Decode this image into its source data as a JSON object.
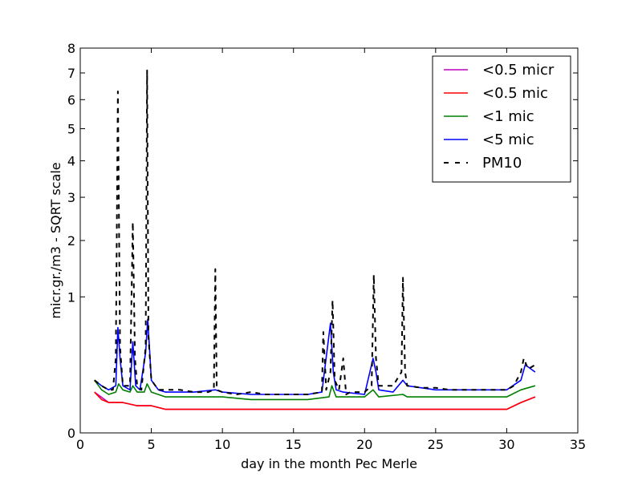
{
  "chart_data": {
    "type": "line",
    "title": "",
    "xlabel": "day in the month Pec Merle",
    "ylabel": "micr.gr./m3 - SQRT scale",
    "xlim": [
      0,
      35
    ],
    "ylim": [
      0,
      8
    ],
    "y_scale": "sqrt",
    "grid": false,
    "legend_position": "top-right",
    "x_ticks": [
      0,
      5,
      10,
      15,
      20,
      25,
      30,
      35
    ],
    "y_ticks": [
      0,
      1,
      2,
      3,
      4,
      5,
      6,
      7,
      8
    ],
    "series": [
      {
        "name": "<0.5 micr",
        "color": "#bf00bf",
        "style": "solid",
        "x": [
          1.0,
          2.0,
          3.0,
          4.0,
          5.0,
          6.0,
          8.0,
          10.0,
          12.0,
          14.0,
          16.0,
          18.0,
          20.0,
          22.0,
          24.0,
          26.0,
          28.0,
          30.0,
          31.0,
          32.0
        ],
        "values": [
          0.09,
          0.05,
          0.05,
          0.04,
          0.04,
          0.03,
          0.03,
          0.03,
          0.03,
          0.03,
          0.03,
          0.03,
          0.03,
          0.03,
          0.03,
          0.03,
          0.03,
          0.03,
          0.05,
          0.07
        ]
      },
      {
        "name": "<0.5 mic",
        "color": "#ff0000",
        "style": "solid",
        "x": [
          1.0,
          1.5,
          2.0,
          3.0,
          4.0,
          5.0,
          6.0,
          7.0,
          8.0,
          10.0,
          12.0,
          14.0,
          16.0,
          18.0,
          20.0,
          22.0,
          24.0,
          26.0,
          28.0,
          30.0,
          31.0,
          32.0
        ],
        "values": [
          0.09,
          0.06,
          0.05,
          0.05,
          0.04,
          0.04,
          0.03,
          0.03,
          0.03,
          0.03,
          0.03,
          0.03,
          0.03,
          0.03,
          0.03,
          0.03,
          0.03,
          0.03,
          0.03,
          0.03,
          0.05,
          0.07
        ]
      },
      {
        "name": "<1 mic",
        "color": "#008000",
        "style": "solid",
        "x": [
          1.0,
          1.5,
          2.0,
          2.5,
          2.7,
          3.0,
          3.5,
          3.7,
          4.0,
          4.5,
          4.7,
          5.0,
          6.0,
          8.0,
          10.0,
          12.0,
          14.0,
          16.0,
          17.5,
          17.7,
          18.0,
          20.0,
          20.6,
          21.0,
          22.7,
          23.0,
          25.0,
          28.0,
          30.0,
          31.0,
          32.0
        ],
        "values": [
          0.15,
          0.1,
          0.08,
          0.09,
          0.13,
          0.1,
          0.09,
          0.12,
          0.09,
          0.09,
          0.13,
          0.09,
          0.07,
          0.07,
          0.07,
          0.06,
          0.06,
          0.06,
          0.07,
          0.12,
          0.07,
          0.07,
          0.1,
          0.07,
          0.08,
          0.07,
          0.07,
          0.07,
          0.07,
          0.1,
          0.12
        ]
      },
      {
        "name": "<5 mic",
        "color": "#0000ff",
        "style": "solid",
        "x": [
          1.0,
          1.5,
          2.0,
          2.5,
          2.65,
          2.8,
          3.0,
          3.5,
          3.7,
          3.9,
          4.2,
          4.6,
          4.75,
          5.0,
          5.5,
          6.0,
          8.0,
          9.5,
          10.0,
          12.0,
          14.0,
          16.0,
          17.0,
          17.6,
          17.8,
          18.0,
          18.5,
          20.0,
          20.6,
          20.8,
          21.0,
          22.0,
          22.7,
          23.0,
          25.0,
          27.0,
          29.0,
          30.0,
          31.0,
          31.3,
          32.0
        ],
        "values": [
          0.15,
          0.12,
          0.1,
          0.12,
          0.6,
          0.3,
          0.12,
          0.1,
          0.45,
          0.12,
          0.1,
          0.35,
          0.7,
          0.15,
          0.1,
          0.09,
          0.09,
          0.1,
          0.09,
          0.08,
          0.08,
          0.08,
          0.09,
          0.65,
          0.2,
          0.1,
          0.09,
          0.08,
          0.3,
          0.2,
          0.1,
          0.09,
          0.15,
          0.12,
          0.1,
          0.1,
          0.1,
          0.1,
          0.15,
          0.25,
          0.2
        ]
      },
      {
        "name": "PM10",
        "color": "#000000",
        "style": "dashed",
        "x": [
          1.0,
          1.5,
          2.0,
          2.3,
          2.5,
          2.65,
          2.8,
          3.0,
          3.5,
          3.7,
          3.85,
          4.0,
          4.3,
          4.6,
          4.7,
          4.8,
          5.0,
          5.5,
          6.0,
          7.0,
          8.0,
          9.0,
          9.4,
          9.5,
          9.6,
          10.0,
          11.0,
          12.0,
          13.0,
          14.0,
          15.0,
          16.0,
          17.0,
          17.1,
          17.3,
          17.6,
          17.75,
          17.9,
          18.2,
          18.5,
          18.7,
          19.0,
          20.0,
          20.5,
          20.65,
          20.8,
          21.0,
          22.0,
          22.6,
          22.7,
          22.85,
          23.0,
          24.0,
          25.0,
          26.0,
          27.0,
          28.0,
          28.8,
          29.0,
          29.5,
          30.0,
          30.5,
          31.0,
          31.2,
          31.5,
          32.0
        ],
        "values": [
          0.15,
          0.12,
          0.1,
          0.1,
          0.3,
          6.3,
          0.4,
          0.12,
          0.12,
          2.4,
          0.3,
          0.12,
          0.1,
          0.4,
          7.1,
          0.5,
          0.15,
          0.1,
          0.1,
          0.1,
          0.09,
          0.09,
          0.1,
          1.45,
          0.1,
          0.09,
          0.08,
          0.09,
          0.08,
          0.08,
          0.08,
          0.08,
          0.09,
          0.55,
          0.1,
          0.2,
          0.95,
          0.15,
          0.1,
          0.3,
          0.08,
          0.09,
          0.09,
          0.12,
          1.35,
          0.3,
          0.12,
          0.12,
          0.2,
          1.3,
          0.2,
          0.12,
          0.11,
          0.11,
          0.1,
          0.1,
          0.1,
          0.1,
          0.1,
          0.1,
          0.1,
          0.12,
          0.2,
          0.3,
          0.22,
          0.25
        ]
      }
    ]
  }
}
